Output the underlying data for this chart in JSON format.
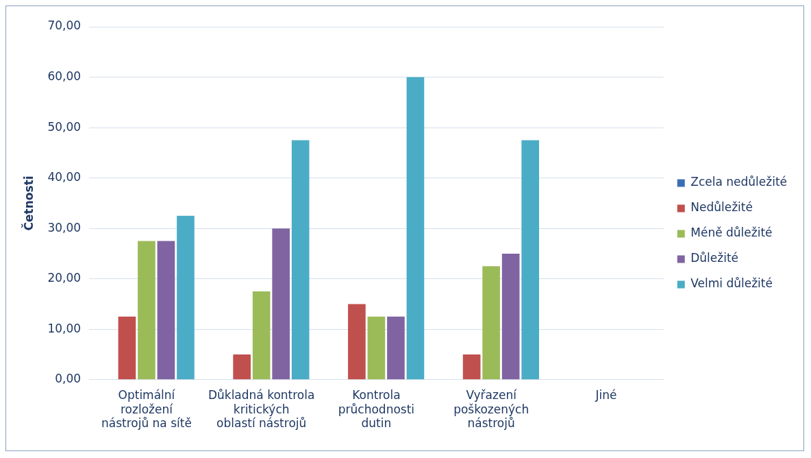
{
  "chart_data": {
    "type": "bar",
    "ylabel": "Četnosti",
    "categories": [
      "Optimální rozložení nástrojů na sítě",
      "Důkladná kontrola kritických oblastí nástrojů",
      "Kontrola průchodnosti dutin",
      "Vyřazení poškozených nástrojů",
      "Jiné"
    ],
    "series": [
      {
        "name": "Zcela nedůležité",
        "color": "#3a6fb5",
        "values": [
          0,
          0,
          0,
          0,
          0
        ]
      },
      {
        "name": "Nedůležité",
        "color": "#c0504d",
        "values": [
          12.5,
          5,
          15,
          5,
          0
        ]
      },
      {
        "name": "Méně důležité",
        "color": "#9bbb59",
        "values": [
          27.5,
          17.5,
          12.5,
          22.5,
          0
        ]
      },
      {
        "name": "Důležité",
        "color": "#8064a2",
        "values": [
          27.5,
          30,
          12.5,
          25,
          0
        ]
      },
      {
        "name": "Velmi důležité",
        "color": "#4bacc6",
        "values": [
          32.5,
          47.5,
          60,
          47.5,
          0
        ]
      }
    ],
    "ylim": [
      0,
      70
    ],
    "yticks": [
      {
        "value": 0,
        "label": "0,00"
      },
      {
        "value": 10,
        "label": "10,00"
      },
      {
        "value": 20,
        "label": "20,00"
      },
      {
        "value": 30,
        "label": "30,00"
      },
      {
        "value": 40,
        "label": "40,00"
      },
      {
        "value": 50,
        "label": "50,00"
      },
      {
        "value": 60,
        "label": "60,00"
      },
      {
        "value": 70,
        "label": "70,00"
      }
    ],
    "grid": "y",
    "legend": "right"
  }
}
